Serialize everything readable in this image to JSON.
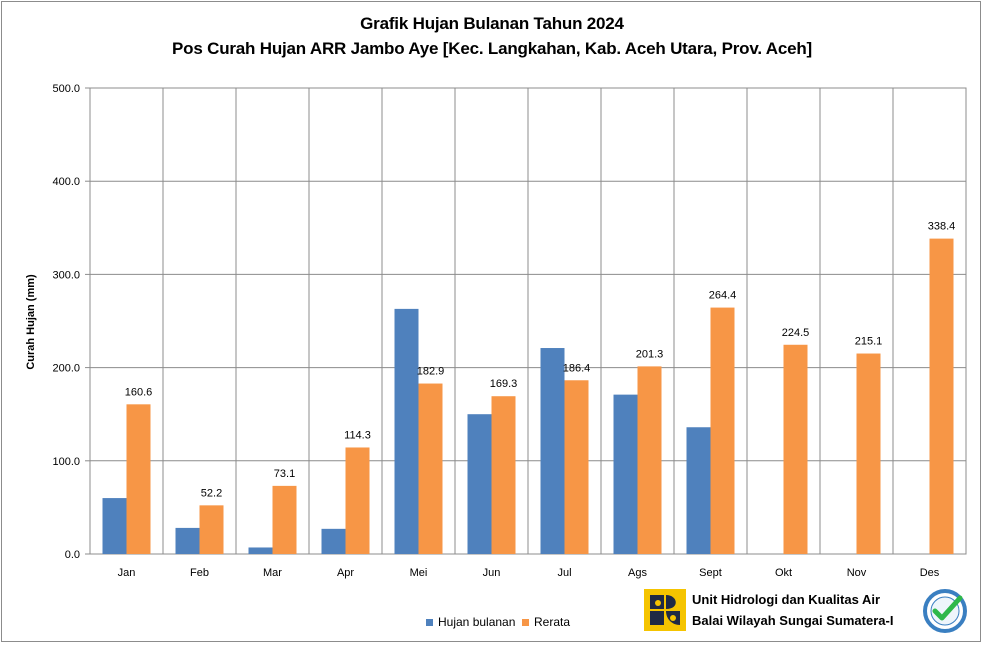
{
  "chart_data": {
    "type": "bar",
    "title": "Grafik Hujan Bulanan Tahun 2024",
    "subtitle": "Pos Curah Hujan ARR  Jambo Aye [Kec. Langkahan, Kab. Aceh Utara, Prov. Aceh]",
    "ylabel": "Curah Hujan (mm)",
    "xlabel": "",
    "ylim": [
      0,
      500
    ],
    "yticks": [
      "0.0",
      "100.0",
      "200.0",
      "300.0",
      "400.0",
      "500.0"
    ],
    "ytick_values": [
      0,
      100,
      200,
      300,
      400,
      500
    ],
    "grid": true,
    "legend_position": "bottom-center",
    "categories": [
      "Jan",
      "Feb",
      "Mar",
      "Apr",
      "Mei",
      "Jun",
      "Jul",
      "Ags",
      "Sept",
      "Okt",
      "Nov",
      "Des"
    ],
    "series": [
      {
        "name": "Hujan bulanan",
        "color": "#4f81bd",
        "values": [
          60,
          28,
          7,
          27,
          263,
          150,
          221,
          171,
          136,
          null,
          null,
          null
        ],
        "show_labels": false
      },
      {
        "name": "Rerata",
        "color": "#f79646",
        "values": [
          160.6,
          52.2,
          73.1,
          114.3,
          182.9,
          169.3,
          186.4,
          201.3,
          264.4,
          224.5,
          215.1,
          338.4
        ],
        "labels": [
          "160.6",
          "52.2",
          "73.1",
          "114.3",
          "182.9",
          "169.3",
          "186.4",
          "201.3",
          "264.4",
          "224.5",
          "215.1",
          "338.4"
        ],
        "show_labels": true
      }
    ]
  },
  "footer": {
    "org_line1": "Unit Hidrologi dan Kualitas Air",
    "org_line2": "Balai Wilayah Sungai Sumatera-I",
    "logo_icon": "pupr-logo-icon",
    "cert_icon": "iso-certified-badge-icon",
    "logo_color": "#f5c400",
    "logo_dark": "#1f2a44",
    "cert_color": "#3a7fc1",
    "check_color": "#2eb84a"
  }
}
